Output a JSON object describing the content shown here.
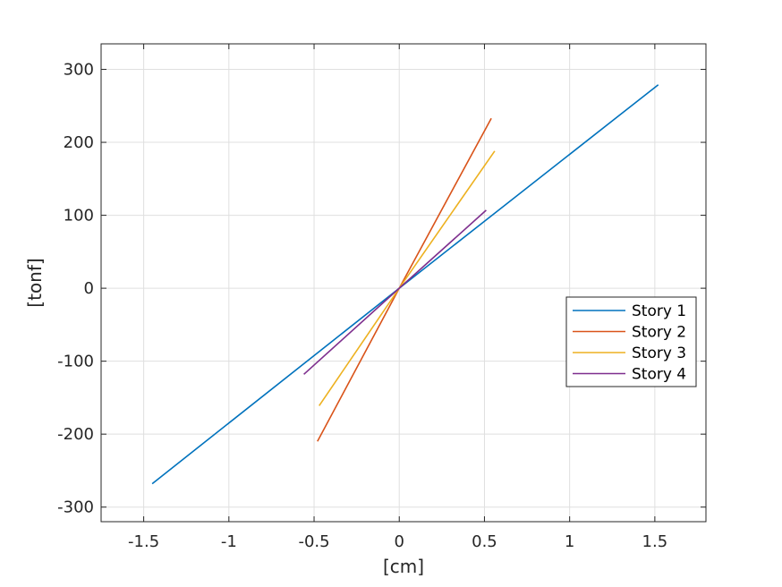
{
  "chart_data": {
    "type": "line",
    "title": "",
    "xlabel": "[cm]",
    "ylabel": "[tonf]",
    "xlim": [
      -1.75,
      1.8
    ],
    "ylim": [
      -320,
      335
    ],
    "xticks": [
      -1.5,
      -1,
      -0.5,
      0,
      0.5,
      1,
      1.5
    ],
    "xtick_labels": [
      "-1.5",
      "-1",
      "-0.5",
      "0",
      "0.5",
      "1",
      "1.5"
    ],
    "yticks": [
      -300,
      -200,
      -100,
      0,
      100,
      200,
      300
    ],
    "ytick_labels": [
      "-300",
      "-200",
      "-100",
      "0",
      "100",
      "200",
      "300"
    ],
    "grid": true,
    "legend_position": "right",
    "series": [
      {
        "name": "Story 1",
        "color": "#0072BD",
        "x": [
          -1.45,
          0,
          1.52
        ],
        "y": [
          -268,
          0,
          279
        ]
      },
      {
        "name": "Story 2",
        "color": "#D95319",
        "x": [
          -0.48,
          0,
          0.54
        ],
        "y": [
          -210,
          0,
          233
        ]
      },
      {
        "name": "Story 3",
        "color": "#EDB120",
        "x": [
          -0.47,
          0,
          0.56
        ],
        "y": [
          -161,
          0,
          188
        ]
      },
      {
        "name": "Story 4",
        "color": "#7E2F8E",
        "x": [
          -0.56,
          0,
          0.51
        ],
        "y": [
          -118,
          0,
          107
        ]
      }
    ]
  }
}
